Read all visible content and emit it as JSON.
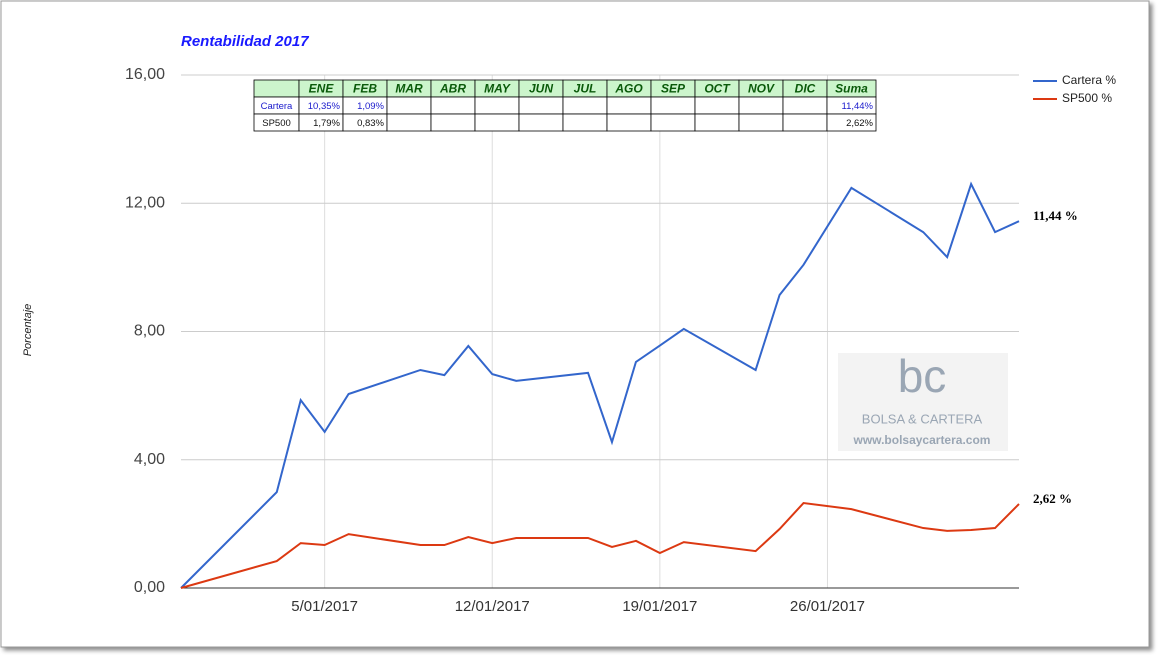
{
  "chart_data": {
    "type": "line",
    "title": "Rentabilidad 2017",
    "y_label": "Porcentaje",
    "x": [
      "30/12/2016",
      "3/01/2017",
      "4/01/2017",
      "5/01/2017",
      "6/01/2017",
      "9/01/2017",
      "10/01/2017",
      "11/01/2017",
      "12/01/2017",
      "13/01/2017",
      "16/01/2017",
      "17/01/2017",
      "18/01/2017",
      "19/01/2017",
      "20/01/2017",
      "23/01/2017",
      "24/01/2017",
      "25/01/2017",
      "27/01/2017",
      "30/01/2017",
      "31/01/2017",
      "1/02/2017",
      "2/02/2017",
      "3/02/2017"
    ],
    "series": [
      {
        "name": "Cartera %",
        "color": "#3366cc",
        "values": [
          0,
          2.99,
          5.86,
          4.87,
          6.05,
          6.8,
          6.64,
          7.55,
          6.67,
          6.46,
          6.71,
          4.55,
          7.05,
          7.56,
          8.08,
          6.8,
          9.14,
          10.08,
          12.48,
          11.1,
          10.32,
          12.6,
          11.1,
          11.44
        ],
        "value_labels": [
          null,
          null,
          null,
          null,
          null,
          null,
          null,
          null,
          null,
          null,
          null,
          null,
          null,
          null,
          null,
          null,
          null,
          null,
          null,
          null,
          null,
          null,
          null,
          "11,44 %"
        ]
      },
      {
        "name": "SP500 %",
        "color": "#dc3912",
        "values": [
          0,
          0.84,
          1.4,
          1.34,
          1.68,
          1.34,
          1.34,
          1.59,
          1.4,
          1.56,
          1.56,
          1.28,
          1.47,
          1.09,
          1.43,
          1.15,
          1.84,
          2.65,
          2.46,
          1.87,
          1.78,
          1.81,
          1.87,
          2.62
        ],
        "value_labels": [
          null,
          null,
          null,
          null,
          null,
          null,
          null,
          null,
          null,
          null,
          null,
          null,
          null,
          null,
          null,
          null,
          null,
          null,
          null,
          null,
          null,
          null,
          null,
          "2,62 %"
        ]
      }
    ],
    "xlim": [
      "30/12/2016",
      "3/02/2017"
    ],
    "xticks": [
      "5/01/2017",
      "12/01/2017",
      "19/01/2017",
      "26/01/2017"
    ],
    "ylim": [
      0,
      16
    ],
    "yticks": [
      {
        "value": 0,
        "label": "0,00"
      },
      {
        "value": 4,
        "label": "4,00"
      },
      {
        "value": 8,
        "label": "8,00"
      },
      {
        "value": 12,
        "label": "12,00"
      },
      {
        "value": 16,
        "label": "16,00"
      }
    ],
    "grid": true,
    "legend": "right",
    "table": {
      "columns": [
        null,
        "ENE",
        "FEB",
        "MAR",
        "ABR",
        "MAY",
        "JUN",
        "JUL",
        "AGO",
        "SEP",
        "OCT",
        "NOV",
        "DIC",
        "Suma"
      ],
      "rows": [
        [
          "Cartera",
          "10,35%",
          "1,09%",
          null,
          null,
          null,
          null,
          null,
          null,
          null,
          null,
          null,
          null,
          "11,44%"
        ],
        [
          "SP500",
          "1,79%",
          "0,83%",
          null,
          null,
          null,
          null,
          null,
          null,
          null,
          null,
          null,
          null,
          "2,62%"
        ]
      ]
    },
    "watermark": {
      "logo": "bc",
      "name": "BOLSA & CARTERA",
      "url": "www.bolsaycartera.com"
    }
  }
}
